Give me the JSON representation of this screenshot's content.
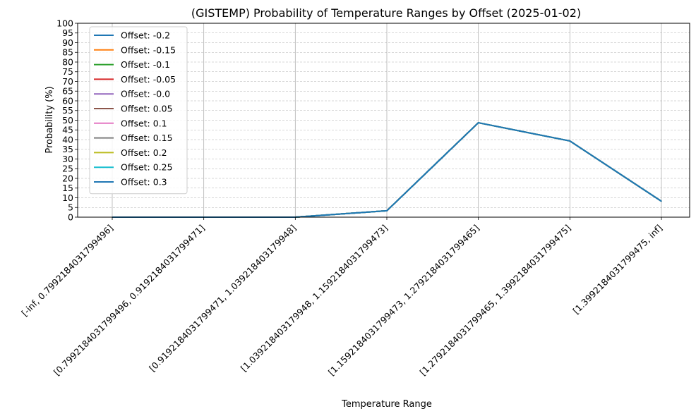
{
  "chart_data": {
    "type": "line",
    "title": "(GISTEMP) Probability of Temperature Ranges by Offset (2025-01-02)",
    "xlabel": "Temperature Range",
    "ylabel": "Probability (%)",
    "ylim": [
      0,
      100
    ],
    "yticks": [
      0,
      5,
      10,
      15,
      20,
      25,
      30,
      35,
      40,
      45,
      50,
      55,
      60,
      65,
      70,
      75,
      80,
      85,
      90,
      95,
      100
    ],
    "grid": true,
    "legend_position": "upper-left",
    "categories": [
      "[-inf, 0.7992184031799496]",
      "[0.7992184031799496, 0.9192184031799471]",
      "[0.9192184031799471, 1.039218403179948]",
      "[1.039218403179948, 1.1592184031799473]",
      "[1.1592184031799473, 1.2792184031799465]",
      "[1.2792184031799465, 1.3992184031799475]",
      "[1.3992184031799475, inf]"
    ],
    "series": [
      {
        "name": "Offset: -0.2",
        "color": "#1f77b4",
        "values": [
          0,
          0,
          0,
          3.3,
          48.7,
          39.3,
          8.2
        ]
      },
      {
        "name": "Offset: -0.15",
        "color": "#ff7f0e",
        "values": [
          0,
          0,
          0,
          3.3,
          48.7,
          39.3,
          8.2
        ]
      },
      {
        "name": "Offset: -0.1",
        "color": "#2ca02c",
        "values": [
          0,
          0,
          0,
          3.3,
          48.7,
          39.3,
          8.2
        ]
      },
      {
        "name": "Offset: -0.05",
        "color": "#d62728",
        "values": [
          0,
          0,
          0,
          3.3,
          48.7,
          39.3,
          8.2
        ]
      },
      {
        "name": "Offset: -0.0",
        "color": "#9467bd",
        "values": [
          0,
          0,
          0,
          3.3,
          48.7,
          39.3,
          8.2
        ]
      },
      {
        "name": "Offset: 0.05",
        "color": "#8c564b",
        "values": [
          0,
          0,
          0,
          3.3,
          48.7,
          39.3,
          8.2
        ]
      },
      {
        "name": "Offset: 0.1",
        "color": "#e377c2",
        "values": [
          0,
          0,
          0,
          3.3,
          48.7,
          39.3,
          8.2
        ]
      },
      {
        "name": "Offset: 0.15",
        "color": "#7f7f7f",
        "values": [
          0,
          0,
          0,
          3.3,
          48.7,
          39.3,
          8.2
        ]
      },
      {
        "name": "Offset: 0.2",
        "color": "#bcbd22",
        "values": [
          0,
          0,
          0,
          3.3,
          48.7,
          39.3,
          8.2
        ]
      },
      {
        "name": "Offset: 0.25",
        "color": "#17becf",
        "values": [
          0,
          0,
          0,
          3.3,
          48.7,
          39.3,
          8.2
        ]
      },
      {
        "name": "Offset: 0.3",
        "color": "#1f77b4",
        "values": [
          0,
          0,
          0,
          3.3,
          48.7,
          39.3,
          8.2
        ]
      }
    ]
  }
}
